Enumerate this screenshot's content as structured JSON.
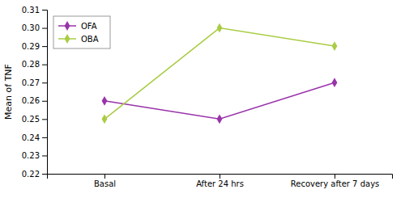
{
  "chart_data": {
    "type": "line",
    "categories": [
      "Basal",
      "After 24 hrs",
      "Recovery after 7 days"
    ],
    "series": [
      {
        "name": "OFA",
        "color": "#9933aa",
        "marker": "diamond",
        "values": [
          0.26,
          0.25,
          0.27
        ]
      },
      {
        "name": "OBA",
        "color": "#aacc44",
        "marker": "diamond",
        "values": [
          0.25,
          0.3,
          0.29
        ]
      }
    ],
    "ylabel": "Mean of TNF",
    "ylim": [
      0.22,
      0.31
    ],
    "yticks": [
      0.22,
      0.23,
      0.24,
      0.25,
      0.26,
      0.27,
      0.28,
      0.29,
      {
        "value": 0.3,
        "label": "0.30"
      },
      0.31
    ],
    "legend": "upper left"
  }
}
